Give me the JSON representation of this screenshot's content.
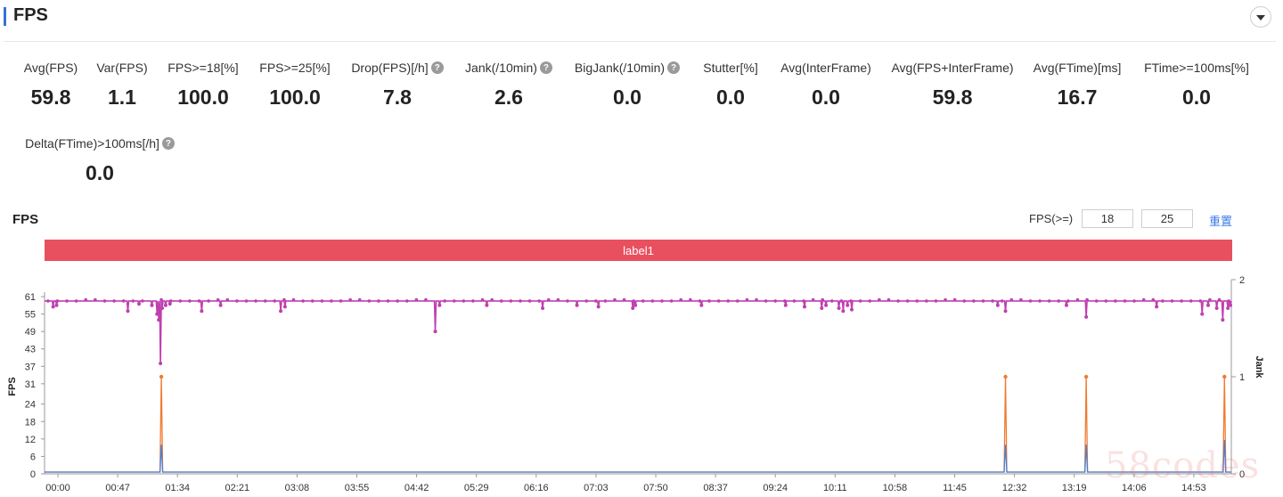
{
  "section": {
    "title": "FPS"
  },
  "metrics": [
    {
      "label": "Avg(FPS)",
      "value": "59.8",
      "help": false
    },
    {
      "label": "Var(FPS)",
      "value": "1.1",
      "help": false
    },
    {
      "label": "FPS>=18[%]",
      "value": "100.0",
      "help": false
    },
    {
      "label": "FPS>=25[%]",
      "value": "100.0",
      "help": false
    },
    {
      "label": "Drop(FPS)[/h]",
      "value": "7.8",
      "help": true
    },
    {
      "label": "Jank(/10min)",
      "value": "2.6",
      "help": true
    },
    {
      "label": "BigJank(/10min)",
      "value": "0.0",
      "help": true
    },
    {
      "label": "Stutter[%]",
      "value": "0.0",
      "help": false
    },
    {
      "label": "Avg(InterFrame)",
      "value": "0.0",
      "help": false
    },
    {
      "label": "Avg(FPS+InterFrame)",
      "value": "59.8",
      "help": false
    },
    {
      "label": "Avg(FTime)[ms]",
      "value": "16.7",
      "help": false
    },
    {
      "label": "FTime>=100ms[%]",
      "value": "0.0",
      "help": false
    },
    {
      "label": "Delta(FTime)>100ms[/h]",
      "value": "0.0",
      "help": true
    }
  ],
  "chart_panel": {
    "title": "FPS",
    "threshold_label": "FPS(>=)",
    "threshold_low": "18",
    "threshold_high": "25",
    "reset_label": "重置",
    "band_label": "label1"
  },
  "watermark": "58codes",
  "chart_data": {
    "type": "line",
    "x_ticks": [
      "00:00",
      "00:47",
      "01:34",
      "02:21",
      "03:08",
      "03:55",
      "04:42",
      "05:29",
      "06:16",
      "07:03",
      "07:50",
      "08:37",
      "09:24",
      "10:11",
      "10:58",
      "11:45",
      "12:32",
      "13:19",
      "14:06",
      "14:53"
    ],
    "y_left": {
      "label": "FPS",
      "ticks": [
        0,
        6,
        12,
        18,
        24,
        31,
        37,
        43,
        49,
        55,
        61
      ]
    },
    "y_right": {
      "label": "Jank",
      "ticks": [
        0,
        1,
        2
      ],
      "range": [
        0,
        2
      ]
    },
    "series": [
      {
        "name": "",
        "color": "#c03fb0",
        "baseline": 59.5,
        "dips": [
          {
            "t": 10,
            "v": 57.5
          },
          {
            "t": 14,
            "v": 58
          },
          {
            "t": 97,
            "v": 56
          },
          {
            "t": 110,
            "v": 58.5
          },
          {
            "t": 125,
            "v": 58
          },
          {
            "t": 131,
            "v": 55
          },
          {
            "t": 133,
            "v": 53
          },
          {
            "t": 135,
            "v": 38
          },
          {
            "t": 137,
            "v": 57
          },
          {
            "t": 141,
            "v": 58
          },
          {
            "t": 146,
            "v": 58.5
          },
          {
            "t": 183,
            "v": 56
          },
          {
            "t": 205,
            "v": 58
          },
          {
            "t": 275,
            "v": 56
          },
          {
            "t": 280,
            "v": 57.5
          },
          {
            "t": 455,
            "v": 49
          },
          {
            "t": 460,
            "v": 58
          },
          {
            "t": 515,
            "v": 58
          },
          {
            "t": 580,
            "v": 57
          },
          {
            "t": 620,
            "v": 58
          },
          {
            "t": 645,
            "v": 57.5
          },
          {
            "t": 685,
            "v": 57
          },
          {
            "t": 688,
            "v": 58
          },
          {
            "t": 765,
            "v": 58
          },
          {
            "t": 863,
            "v": 58
          },
          {
            "t": 885,
            "v": 57.5
          },
          {
            "t": 905,
            "v": 57
          },
          {
            "t": 910,
            "v": 58
          },
          {
            "t": 925,
            "v": 57
          },
          {
            "t": 930,
            "v": 56
          },
          {
            "t": 935,
            "v": 58
          },
          {
            "t": 940,
            "v": 56.5
          },
          {
            "t": 1110,
            "v": 58
          },
          {
            "t": 1119,
            "v": 56
          },
          {
            "t": 1190,
            "v": 58
          },
          {
            "t": 1213,
            "v": 54
          },
          {
            "t": 1295,
            "v": 57.5
          },
          {
            "t": 1348,
            "v": 55
          },
          {
            "t": 1355,
            "v": 58
          },
          {
            "t": 1365,
            "v": 57
          },
          {
            "t": 1372,
            "v": 53
          },
          {
            "t": 1378,
            "v": 57
          },
          {
            "t": 1381,
            "v": 58
          }
        ]
      },
      {
        "name": "",
        "color": "#f07a30",
        "axis": "right",
        "values": [
          {
            "t": 136,
            "v": 1
          },
          {
            "t": 1119,
            "v": 1
          },
          {
            "t": 1213,
            "v": 1
          },
          {
            "t": 1374,
            "v": 1
          }
        ]
      },
      {
        "name": "",
        "color": "#4a7fd1",
        "axis": "right",
        "values": [
          {
            "t": 136,
            "v": 0.3
          },
          {
            "t": 1119,
            "v": 0.3
          },
          {
            "t": 1213,
            "v": 0.3
          },
          {
            "t": 1374,
            "v": 0.35
          }
        ]
      }
    ]
  }
}
